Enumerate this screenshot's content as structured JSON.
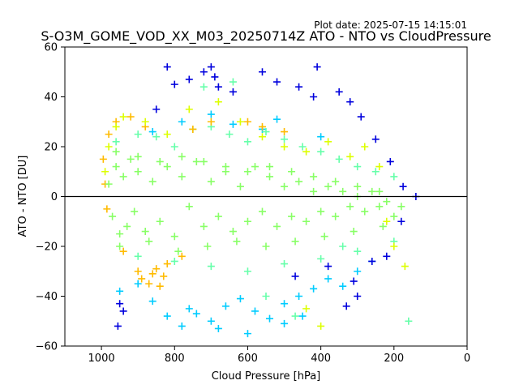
{
  "chart_data": {
    "type": "scatter",
    "title": "S-O3M_GOME_VOD_XX_M03_20250714Z ATO - NTO vs CloudPressure",
    "subtitle": "Plot date: 2025-07-15 14:15:01",
    "xlabel": "Cloud Pressure [hPa]",
    "ylabel": "ATO - NTO [DU]",
    "xlim": [
      1100,
      0
    ],
    "ylim": [
      -60,
      60
    ],
    "x_ticks": [
      1000,
      800,
      600,
      400,
      200,
      0
    ],
    "y_ticks": [
      -60,
      -40,
      -20,
      0,
      20,
      40,
      60
    ],
    "reference_line_y": 0,
    "marker": "+",
    "grid": false,
    "legend": "none",
    "series": [
      {
        "color": "#00ccff",
        "x": [
          950,
          900,
          860,
          820,
          780,
          740,
          700,
          660,
          620,
          580,
          540,
          500,
          460,
          420,
          380,
          340,
          300,
          260,
          860,
          780,
          700,
          640,
          560,
          520,
          600,
          680,
          760,
          500,
          450,
          400
        ],
        "y": [
          -38,
          -35,
          -42,
          -48,
          -52,
          -47,
          -50,
          -44,
          -41,
          -46,
          -49,
          -43,
          -40,
          -37,
          -33,
          -36,
          -30,
          -26,
          26,
          30,
          33,
          29,
          27,
          31,
          -55,
          -53,
          -45,
          -51,
          -48,
          24
        ]
      },
      {
        "color": "#0000dd",
        "x": [
          700,
          690,
          680,
          720,
          800,
          820,
          560,
          520,
          460,
          410,
          350,
          320,
          290,
          250,
          210,
          175,
          950,
          955,
          940,
          330,
          300,
          140,
          180,
          420,
          640,
          760,
          850,
          470,
          380,
          310,
          260,
          220
        ],
        "y": [
          52,
          48,
          44,
          50,
          45,
          52,
          50,
          46,
          44,
          52,
          42,
          38,
          32,
          23,
          14,
          4,
          -43,
          -52,
          -46,
          -44,
          -40,
          0,
          -10,
          40,
          42,
          47,
          35,
          -32,
          -28,
          -34,
          -26,
          -24
        ]
      },
      {
        "color": "#66ffaa",
        "x": [
          960,
          900,
          850,
          800,
          750,
          700,
          650,
          600,
          550,
          500,
          450,
          400,
          350,
          300,
          250,
          200,
          900,
          800,
          700,
          600,
          500,
          400,
          300,
          200,
          720,
          640,
          160,
          550,
          470,
          340
        ],
        "y": [
          22,
          25,
          24,
          20,
          27,
          28,
          25,
          22,
          26,
          23,
          20,
          18,
          15,
          12,
          10,
          8,
          -24,
          -26,
          -28,
          -30,
          -27,
          -25,
          -22,
          -18,
          44,
          46,
          -50,
          -40,
          -48,
          -20
        ]
      },
      {
        "color": "#ffbb00",
        "x": [
          995,
          990,
          985,
          900,
          890,
          870,
          860,
          850,
          840,
          830,
          880,
          920,
          960,
          980,
          750,
          700,
          600,
          560,
          500,
          820,
          780,
          940
        ],
        "y": [
          15,
          5,
          -5,
          -30,
          -33,
          -35,
          -31,
          -29,
          -36,
          -32,
          28,
          32,
          30,
          25,
          27,
          30,
          30,
          28,
          26,
          -27,
          -24,
          -22
        ]
      },
      {
        "color": "#ddff00",
        "x": [
          990,
          980,
          960,
          940,
          880,
          820,
          760,
          680,
          620,
          560,
          500,
          440,
          380,
          320,
          280,
          240,
          220,
          200,
          170,
          440,
          400
        ],
        "y": [
          10,
          20,
          28,
          32,
          30,
          25,
          35,
          38,
          30,
          24,
          20,
          18,
          22,
          16,
          20,
          12,
          -10,
          -20,
          -28,
          -45,
          -52
        ]
      },
      {
        "color": "#88ff66",
        "x": [
          980,
          970,
          960,
          950,
          940,
          930,
          920,
          910,
          900,
          880,
          860,
          840,
          820,
          800,
          780,
          760,
          740,
          720,
          700,
          680,
          660,
          640,
          620,
          600,
          580,
          560,
          540,
          520,
          500,
          480,
          460,
          440,
          420,
          400,
          380,
          360,
          340,
          320,
          300,
          280,
          260,
          240,
          220,
          200,
          180,
          960,
          900,
          840,
          780,
          720,
          660,
          600,
          540,
          480,
          420,
          360,
          300,
          240,
          950,
          870,
          790,
          710,
          630,
          550,
          470,
          390,
          310,
          230
        ],
        "y": [
          5,
          -8,
          12,
          -15,
          8,
          -12,
          15,
          -6,
          10,
          -14,
          6,
          -10,
          12,
          -16,
          8,
          -4,
          14,
          -12,
          6,
          -8,
          10,
          -14,
          4,
          -10,
          12,
          -6,
          8,
          -12,
          4,
          -8,
          6,
          -10,
          2,
          -6,
          4,
          -8,
          2,
          -4,
          0,
          -6,
          2,
          -4,
          -2,
          -8,
          -4,
          18,
          16,
          14,
          16,
          14,
          12,
          10,
          12,
          10,
          8,
          6,
          4,
          2,
          -20,
          -18,
          -22,
          -20,
          -18,
          -20,
          -18,
          -16,
          -14,
          -12
        ]
      }
    ]
  }
}
